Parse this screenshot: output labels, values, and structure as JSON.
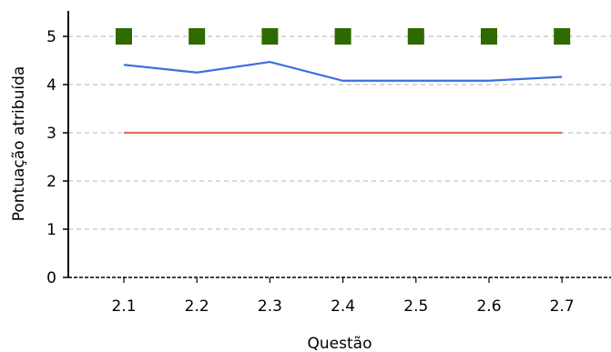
{
  "chart_data": {
    "type": "line",
    "title": "",
    "xlabel": "Questão",
    "ylabel": "Pontuação atribuída",
    "categories": [
      "2.1",
      "2.2",
      "2.3",
      "2.4",
      "2.5",
      "2.6",
      "2.7"
    ],
    "ylim": [
      0,
      5
    ],
    "yticks": [
      "0",
      "1",
      "2",
      "3",
      "4",
      "5"
    ],
    "grid": true,
    "legend": "none",
    "series": [
      {
        "kind": "scatter",
        "marker": "square",
        "color": "#2d6a00",
        "values": [
          5,
          5,
          5,
          5,
          5,
          5,
          5
        ]
      },
      {
        "kind": "line",
        "color": "#3b6fe0",
        "values": [
          4.41,
          4.25,
          4.47,
          4.08,
          4.08,
          4.08,
          4.16
        ]
      },
      {
        "kind": "line",
        "color": "#e07060",
        "values": [
          3,
          3,
          3,
          3,
          3,
          3,
          3
        ]
      }
    ]
  }
}
